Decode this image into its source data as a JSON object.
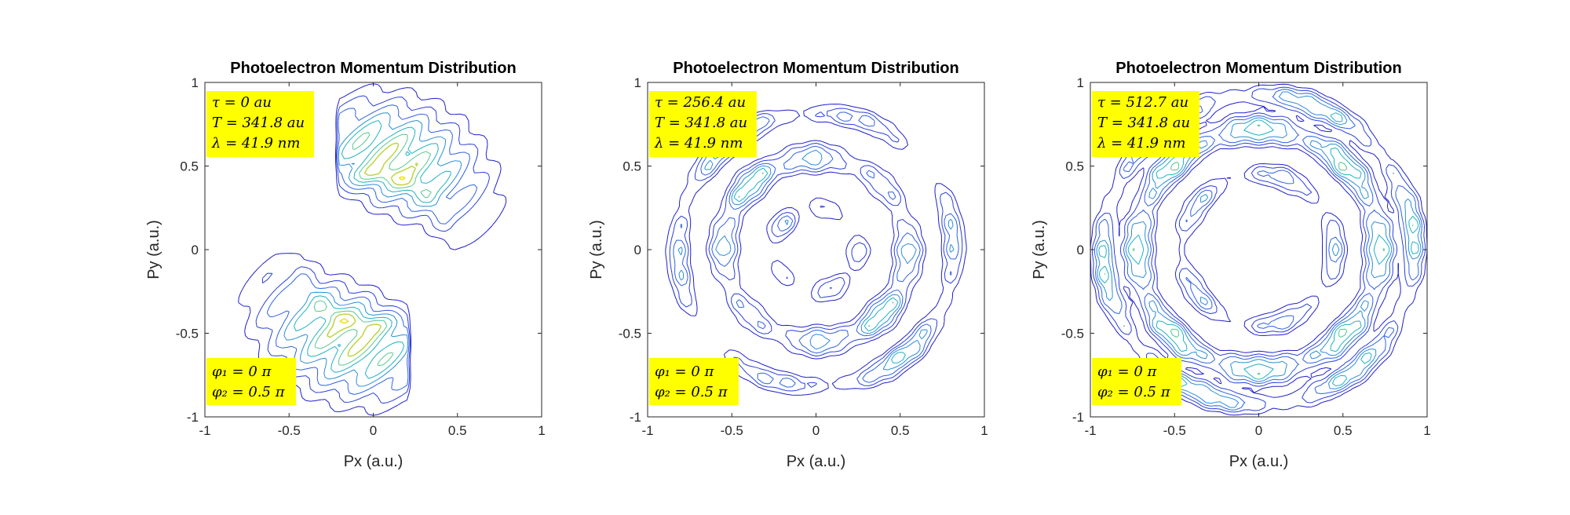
{
  "chart_data": [
    {
      "type": "contour",
      "title": "Photoelectron Momentum Distribution",
      "xlabel": "Px (a.u.)",
      "ylabel": "Py (a.u.)",
      "xlim": [
        -1,
        1
      ],
      "ylim": [
        -1,
        1
      ],
      "xticks": [
        "-1",
        "-0.5",
        "0",
        "0.5",
        "1"
      ],
      "yticks": [
        "-1",
        "-0.5",
        "0",
        "0.5",
        "1"
      ],
      "grid": false,
      "pattern": "two-lobes",
      "annotations_top": [
        "τ = 0 au",
        "T = 341.8 au",
        "λ = 41.9 nm"
      ],
      "annotations_bottom": [
        "φ₁ = 0 π",
        "φ₂ = 0.5 π"
      ],
      "colors": {
        "low": "#1f1fd0",
        "mid": "#19a7c9",
        "high": "#f2e320",
        "annotation_bg": "#ffff00"
      }
    },
    {
      "type": "contour",
      "title": "Photoelectron Momentum Distribution",
      "xlabel": "Px (a.u.)",
      "ylabel": "Py (a.u.)",
      "xlim": [
        -1,
        1
      ],
      "ylim": [
        -1,
        1
      ],
      "xticks": [
        "-1",
        "-0.5",
        "0",
        "0.5",
        "1"
      ],
      "yticks": [
        "-1",
        "-0.5",
        "0",
        "0.5",
        "1"
      ],
      "grid": false,
      "pattern": "rings-partial",
      "annotations_top": [
        "τ = 256.4 au",
        "T = 341.8 au",
        "λ = 41.9 nm"
      ],
      "annotations_bottom": [
        "φ₁ = 0 π",
        "φ₂ = 0.5 π"
      ],
      "colors": {
        "low": "#1f1fd0",
        "mid": "#19a7c9",
        "high": "#f2e320",
        "annotation_bg": "#ffff00"
      }
    },
    {
      "type": "contour",
      "title": "Photoelectron Momentum Distribution",
      "xlabel": "Px (a.u.)",
      "ylabel": "Py (a.u.)",
      "xlim": [
        -1,
        1
      ],
      "ylim": [
        -1,
        1
      ],
      "xticks": [
        "-1",
        "-0.5",
        "0",
        "0.5",
        "1"
      ],
      "yticks": [
        "-1",
        "-0.5",
        "0",
        "0.5",
        "1"
      ],
      "grid": false,
      "pattern": "rings",
      "annotations_top": [
        "τ = 512.7 au",
        "T = 341.8 au",
        "λ = 41.9 nm"
      ],
      "annotations_bottom": [
        "φ₁ = 0 π",
        "φ₂ = 0.5 π"
      ],
      "colors": {
        "low": "#1f1fd0",
        "mid": "#19a7c9",
        "high": "#f2e320",
        "annotation_bg": "#ffff00"
      }
    }
  ]
}
